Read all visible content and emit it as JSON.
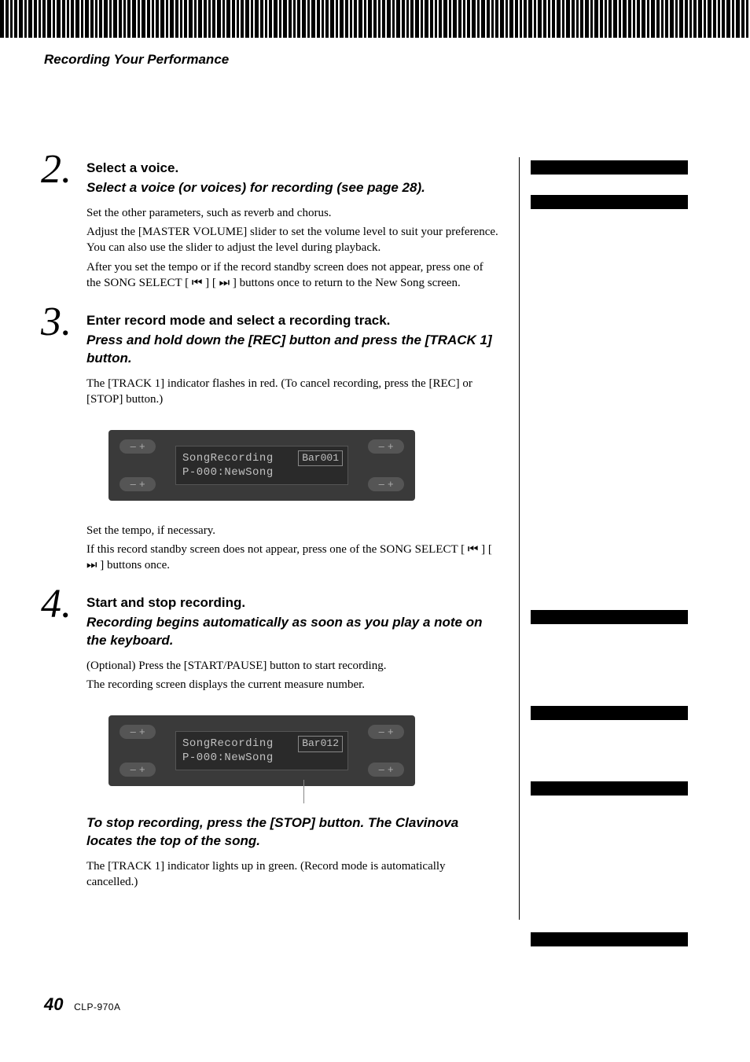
{
  "section_title": "Recording Your Performance",
  "steps": [
    {
      "num": "2.",
      "heading": "Select a voice.",
      "sub": "Select a voice (or voices) for recording (see page 28).",
      "paras": [
        "Set the other parameters, such as reverb and chorus.",
        "Adjust the [MASTER VOLUME] slider to set the volume level to suit your preference. You can also use the slider to adjust the level during playback.",
        "After you set the tempo or if the record standby screen does not appear, press one of the SONG SELECT [ ⏮ ] [ ⏭ ] buttons once to return to the New Song screen."
      ]
    },
    {
      "num": "3.",
      "heading": "Enter record mode and select a recording track.",
      "sub": "Press and hold down the [REC] button and press the [TRACK 1] button.",
      "paras": [
        "The [TRACK 1] indicator flashes in red. (To cancel recording, press the [REC] or [STOP] button.)"
      ],
      "lcd": {
        "line1": "SongRecording",
        "line2": "P-000:NewSong",
        "bar": "Bar001"
      },
      "post_paras": [
        "Set the tempo, if necessary.",
        "If this record standby screen does not appear, press one of the SONG SELECT [ ⏮ ] [ ⏭ ] buttons once."
      ]
    },
    {
      "num": "4.",
      "heading": "Start and stop recording.",
      "sub": "Recording begins automatically as soon as you play a note on the keyboard.",
      "paras": [
        "(Optional) Press the [START/PAUSE] button to start recording.",
        "The recording screen displays the current measure number."
      ],
      "lcd": {
        "line1": "SongRecording",
        "line2": "P-000:NewSong",
        "bar": "Bar012",
        "show_cursor": true
      },
      "post_sub": "To stop recording, press the [STOP] button. The Clavinova locates the top of the song.",
      "post_paras": [
        "The [TRACK 1] indicator lights up in green. (Record mode is automatically cancelled.)"
      ]
    }
  ],
  "right_bars_offsets": [
    0,
    44,
    572,
    694,
    790,
    982
  ],
  "footer": {
    "page": "40",
    "model": "CLP-970A"
  },
  "colors": {
    "lcd_bg": "#3a3a3a",
    "screen_bg": "#2a2a2a",
    "text": "#000000"
  }
}
